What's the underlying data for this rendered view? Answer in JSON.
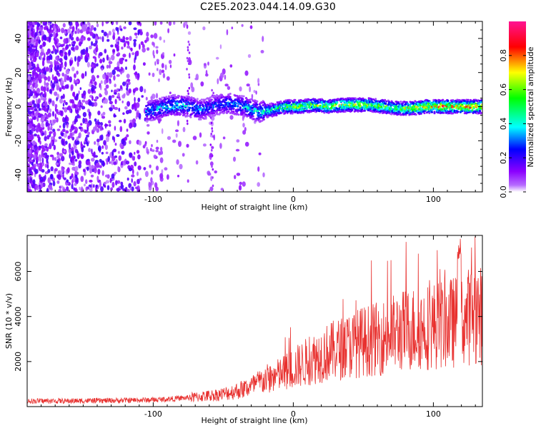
{
  "title": "C2E5.2023.044.14.09.G30",
  "chart_data": [
    {
      "type": "heatmap",
      "xlabel": "Height of straight line (km)",
      "ylabel": "Frequency (Hz)",
      "xlim": [
        -190,
        135
      ],
      "ylim": [
        -50,
        50
      ],
      "xticks": [
        -100,
        0,
        100
      ],
      "yticks": [
        -40,
        -20,
        0,
        20,
        40
      ],
      "colorbar": {
        "label": "Normalized spectral amplitude",
        "range": [
          0,
          1
        ],
        "ticks": [
          "0.0",
          "0.2",
          "0.4",
          "0.6",
          "0.8"
        ],
        "colormap": [
          "#ffffff",
          "#8b00ff",
          "#0000ff",
          "#00ffff",
          "#00ff00",
          "#ffff00",
          "#ff0000",
          "#ff00ff"
        ]
      },
      "ridge": {
        "x": [
          -105,
          -95,
          -85,
          -75,
          -65,
          -55,
          -45,
          -35,
          -25,
          -15,
          -5,
          5,
          15,
          25,
          35,
          45,
          55,
          65,
          75,
          85,
          95,
          105,
          115,
          125,
          135
        ],
        "freq": [
          -3,
          -1,
          1,
          0,
          -2,
          1,
          2,
          0,
          -3,
          -2,
          0,
          0,
          1,
          0,
          1,
          1,
          1,
          0,
          -1,
          -1,
          0,
          0,
          0,
          0,
          0
        ],
        "amplitude": [
          0.35,
          0.4,
          0.45,
          0.4,
          0.35,
          0.3,
          0.35,
          0.4,
          0.45,
          0.5,
          0.6,
          0.7,
          0.65,
          0.7,
          0.72,
          0.75,
          0.7,
          0.65,
          0.6,
          0.75,
          0.8,
          0.85,
          0.85,
          0.85,
          0.8
        ]
      }
    },
    {
      "type": "line",
      "xlabel": "Height of straight line (km)",
      "ylabel": "SNR (10 * v/v)",
      "xlim": [
        -190,
        135
      ],
      "ylim": [
        0,
        7600
      ],
      "xticks": [
        -100,
        0,
        100
      ],
      "yticks": [
        2000,
        4000,
        6000
      ],
      "color": "#e8302e",
      "x": [
        -190,
        -180,
        -170,
        -160,
        -150,
        -140,
        -130,
        -120,
        -110,
        -100,
        -90,
        -80,
        -70,
        -60,
        -50,
        -40,
        -30,
        -20,
        -10,
        0,
        10,
        20,
        30,
        40,
        50,
        60,
        70,
        80,
        90,
        100,
        110,
        120,
        130,
        135
      ],
      "y": [
        250,
        250,
        250,
        250,
        260,
        260,
        270,
        280,
        290,
        300,
        330,
        370,
        420,
        480,
        560,
        700,
        900,
        1200,
        1400,
        1700,
        2000,
        2300,
        2500,
        2700,
        2900,
        3000,
        3200,
        3400,
        3500,
        3600,
        3700,
        3800,
        4200,
        4000
      ]
    }
  ]
}
